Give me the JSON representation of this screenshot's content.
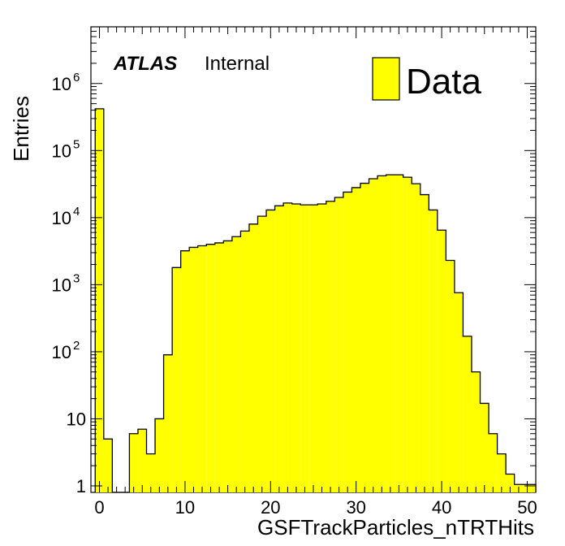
{
  "chart_data": {
    "type": "bar",
    "style": "histogram",
    "xlabel": "GSFTrackParticles_nTRTHits",
    "ylabel": "Entries",
    "yscale": "log",
    "xlim": [
      -1,
      51
    ],
    "ylim": [
      0.8,
      7000000
    ],
    "fill_color": "#ffff00",
    "line_color": "#000000",
    "atlas_label": "ATLAS",
    "atlas_status": "Internal",
    "legend": {
      "position": "top-right",
      "entries": [
        "Data"
      ]
    },
    "x_ticks": [
      {
        "value": 0,
        "label": "0"
      },
      {
        "value": 10,
        "label": "10"
      },
      {
        "value": 20,
        "label": "20"
      },
      {
        "value": 30,
        "label": "30"
      },
      {
        "value": 40,
        "label": "40"
      },
      {
        "value": 50,
        "label": "50"
      }
    ],
    "y_ticks": [
      {
        "value": 1,
        "base": "1",
        "exp": ""
      },
      {
        "value": 10,
        "base": "10",
        "exp": ""
      },
      {
        "value": 100,
        "base": "10",
        "exp": "2"
      },
      {
        "value": 1000,
        "base": "10",
        "exp": "3"
      },
      {
        "value": 10000,
        "base": "10",
        "exp": "4"
      },
      {
        "value": 100000,
        "base": "10",
        "exp": "5"
      },
      {
        "value": 1000000,
        "base": "10",
        "exp": "6"
      }
    ],
    "bin_edges": [
      -0.5,
      0.5,
      1.5,
      2.5,
      3.5,
      4.5,
      5.5,
      6.5,
      7.5,
      8.5,
      9.5,
      10.5,
      11.5,
      12.5,
      13.5,
      14.5,
      15.5,
      16.5,
      17.5,
      18.5,
      19.5,
      20.5,
      21.5,
      22.5,
      23.5,
      24.5,
      25.5,
      26.5,
      27.5,
      28.5,
      29.5,
      30.5,
      31.5,
      32.5,
      33.5,
      34.5,
      35.5,
      36.5,
      37.5,
      38.5,
      39.5,
      40.5,
      41.5,
      42.5,
      43.5,
      44.5,
      45.5,
      46.5,
      47.5,
      48.5,
      49.5,
      50.5,
      51.5
    ],
    "values": [
      420000,
      5,
      0,
      0.8,
      6,
      7,
      3,
      10,
      90,
      1800,
      3200,
      3600,
      3800,
      4000,
      4200,
      4500,
      5200,
      6300,
      8000,
      10500,
      13000,
      15000,
      16500,
      16000,
      15500,
      15500,
      16000,
      17500,
      20000,
      24000,
      28000,
      32500,
      38000,
      42000,
      43500,
      43500,
      40000,
      32000,
      22000,
      13000,
      6500,
      2300,
      760,
      170,
      50,
      17,
      6,
      3,
      1.5,
      1.05,
      1.05,
      1.05
    ]
  }
}
